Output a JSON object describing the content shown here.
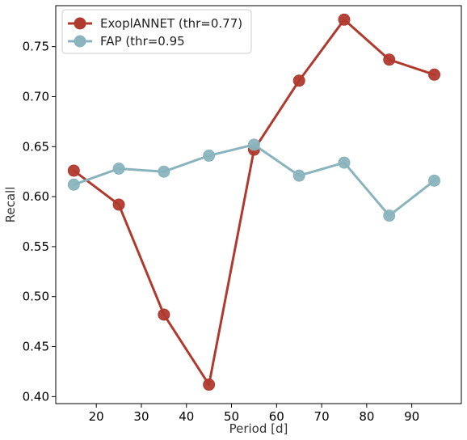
{
  "chart_data": {
    "type": "line",
    "title": "",
    "xlabel": "Period [d]",
    "ylabel": "Recall",
    "x": [
      15,
      25,
      35,
      45,
      55,
      65,
      75,
      85,
      95
    ],
    "xlim": [
      11,
      101
    ],
    "ylim": [
      0.393,
      0.791
    ],
    "xticks": [
      20,
      30,
      40,
      50,
      60,
      70,
      80,
      90
    ],
    "xtick_labels": [
      "20",
      "30",
      "40",
      "50",
      "60",
      "70",
      "80",
      "90"
    ],
    "yticks": [
      0.4,
      0.45,
      0.5,
      0.55,
      0.6,
      0.65,
      0.7,
      0.75
    ],
    "ytick_labels": [
      "0.40",
      "0.45",
      "0.50",
      "0.55",
      "0.60",
      "0.65",
      "0.70",
      "0.75"
    ],
    "grid": false,
    "legend_position": "top-left",
    "series": [
      {
        "name": "ExoplANNET (thr=0.77)",
        "color": "#b03a2e",
        "values": [
          0.626,
          0.592,
          0.482,
          0.412,
          0.647,
          0.716,
          0.777,
          0.737,
          0.722
        ]
      },
      {
        "name": "FAP (thr=0.95",
        "color": "#8ab4bd",
        "values": [
          0.612,
          0.628,
          0.625,
          0.641,
          0.652,
          0.621,
          0.634,
          0.581,
          0.616
        ]
      }
    ]
  }
}
